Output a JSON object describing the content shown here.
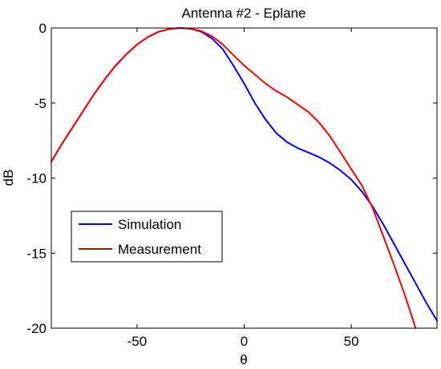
{
  "chart_data": {
    "type": "line",
    "title": "Antenna #2 - Eplane",
    "xlabel": "θ",
    "ylabel": "dB",
    "xlim": [
      -90,
      90
    ],
    "ylim": [
      -20,
      0
    ],
    "xticks": [
      -50,
      0,
      50
    ],
    "yticks": [
      0,
      -5,
      -10,
      -15,
      -20
    ],
    "xtick_labels": [
      "-50",
      "0",
      "50"
    ],
    "ytick_labels": [
      "0",
      "-5",
      "-10",
      "-15",
      "-20"
    ],
    "grid": false,
    "legend_position": "lower-left",
    "series": [
      {
        "name": "Simulation",
        "color": "#0000ff",
        "x": [
          -90,
          -85,
          -80,
          -75,
          -70,
          -65,
          -60,
          -55,
          -50,
          -45,
          -40,
          -35,
          -30,
          -25,
          -20,
          -15,
          -10,
          -5,
          0,
          5,
          10,
          15,
          20,
          25,
          30,
          35,
          40,
          45,
          50,
          55,
          60,
          65,
          70,
          75,
          80,
          85,
          90
        ],
        "y": [
          -8.9,
          -7.7,
          -6.6,
          -5.5,
          -4.4,
          -3.4,
          -2.5,
          -1.75,
          -1.1,
          -0.6,
          -0.25,
          -0.07,
          0.0,
          -0.05,
          -0.25,
          -0.7,
          -1.4,
          -2.5,
          -3.7,
          -5.0,
          -6.1,
          -7.0,
          -7.6,
          -8.0,
          -8.3,
          -8.6,
          -9.0,
          -9.5,
          -10.1,
          -10.9,
          -11.9,
          -13.1,
          -14.4,
          -15.7,
          -17.0,
          -18.3,
          -19.5
        ]
      },
      {
        "name": "Measurement",
        "color": "#ff0000",
        "legend_color": "#8b2500",
        "x": [
          -90,
          -85,
          -80,
          -75,
          -70,
          -65,
          -60,
          -55,
          -50,
          -45,
          -40,
          -35,
          -30,
          -25,
          -20,
          -15,
          -10,
          -5,
          0,
          5,
          10,
          15,
          20,
          25,
          30,
          35,
          40,
          45,
          50,
          55,
          60,
          65,
          70,
          75,
          78,
          80
        ],
        "y": [
          -8.9,
          -7.7,
          -6.6,
          -5.5,
          -4.4,
          -3.4,
          -2.5,
          -1.75,
          -1.1,
          -0.6,
          -0.25,
          -0.07,
          0.0,
          -0.05,
          -0.2,
          -0.55,
          -1.1,
          -1.8,
          -2.5,
          -3.1,
          -3.7,
          -4.2,
          -4.6,
          -5.1,
          -5.6,
          -6.3,
          -7.2,
          -8.3,
          -9.4,
          -10.5,
          -12.0,
          -13.9,
          -15.8,
          -17.8,
          -19.1,
          -20.0
        ]
      }
    ]
  }
}
